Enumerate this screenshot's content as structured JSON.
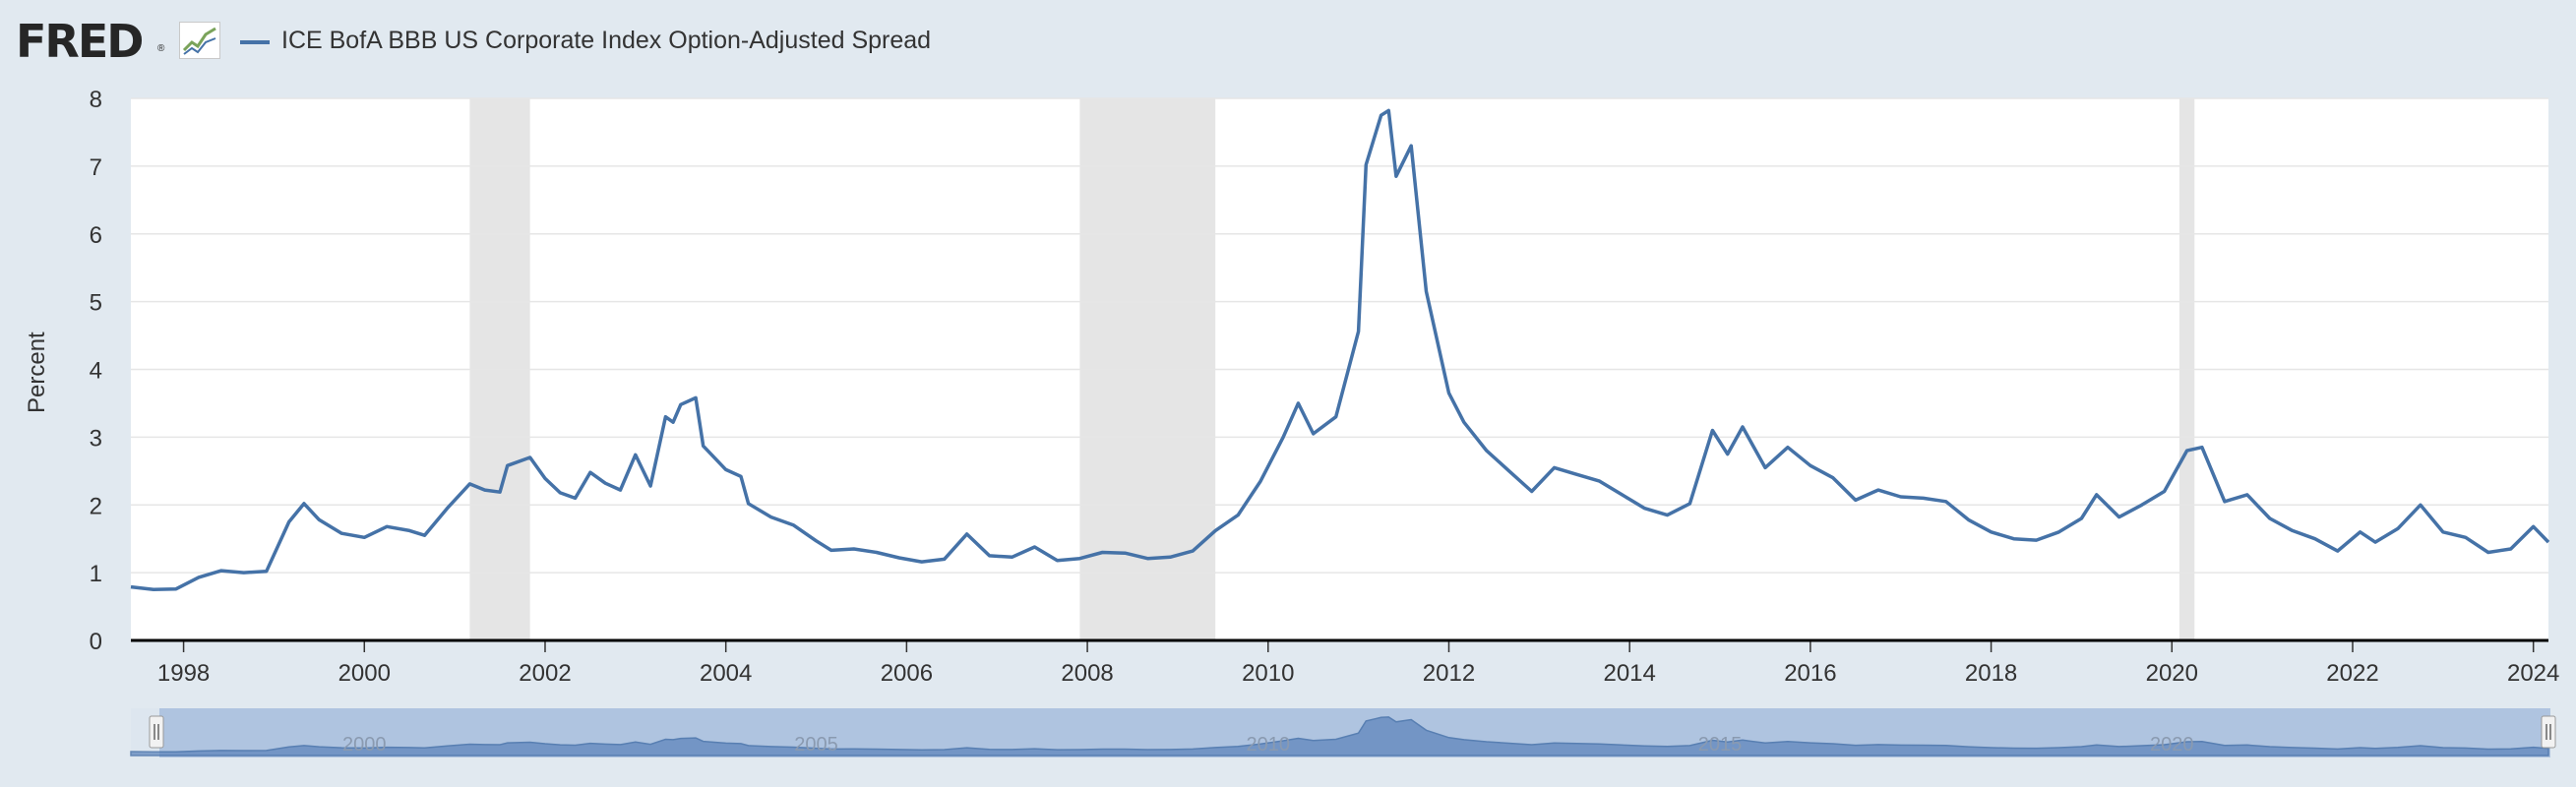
{
  "header": {
    "logo_text": "FRED",
    "logo_reg": "®",
    "logo_icon": "chart-line-icon",
    "legend_label": "ICE BofA BBB US Corporate Index Option-Adjusted Spread"
  },
  "navigator": {
    "year_labels": [
      "2000",
      "2005",
      "2010",
      "2015",
      "2020"
    ],
    "left_handle_icon": "drag-handle-icon",
    "right_handle_icon": "drag-handle-icon"
  },
  "colors": {
    "line": "#4572a7",
    "recession": "#e5e5e5",
    "background": "#e1e9f0",
    "plot": "#ffffff"
  },
  "chart_data": {
    "type": "line",
    "title": "",
    "xlabel": "",
    "ylabel": "Percent",
    "ylim": [
      0,
      8
    ],
    "xlim": [
      "1997-06",
      "2024-03"
    ],
    "yticks": [
      "0",
      "1",
      "2",
      "3",
      "4",
      "5",
      "6",
      "7",
      "8"
    ],
    "xticks": [
      "1998",
      "2000",
      "2002",
      "2004",
      "2006",
      "2008",
      "2010",
      "2012",
      "2014",
      "2016",
      "2018",
      "2020",
      "2022",
      "2024"
    ],
    "grid": true,
    "legend": "top-left",
    "recessions": [
      [
        "2001-03",
        "2001-11"
      ],
      [
        "2007-12",
        "2009-06"
      ],
      [
        "2020-02",
        "2020-04"
      ]
    ],
    "series": [
      {
        "name": "ICE BofA BBB US Corporate Index Option-Adjusted Spread",
        "points": [
          [
            "1997-06",
            0.79
          ],
          [
            "1997-09",
            0.75
          ],
          [
            "1997-12",
            0.76
          ],
          [
            "1998-03",
            0.93
          ],
          [
            "1998-06",
            1.03
          ],
          [
            "1998-09",
            1.0
          ],
          [
            "1998-12",
            1.02
          ],
          [
            "1999-03",
            1.75
          ],
          [
            "1999-05",
            2.02
          ],
          [
            "1999-07",
            1.78
          ],
          [
            "1999-10",
            1.58
          ],
          [
            "2000-01",
            1.52
          ],
          [
            "2000-04",
            1.68
          ],
          [
            "2000-07",
            1.62
          ],
          [
            "2000-09",
            1.55
          ],
          [
            "2000-12",
            1.95
          ],
          [
            "2001-03",
            2.31
          ],
          [
            "2001-05",
            2.22
          ],
          [
            "2001-07",
            2.19
          ],
          [
            "2001-08",
            2.58
          ],
          [
            "2001-11",
            2.7
          ],
          [
            "2002-01",
            2.39
          ],
          [
            "2002-03",
            2.18
          ],
          [
            "2002-05",
            2.1
          ],
          [
            "2002-07",
            2.48
          ],
          [
            "2002-09",
            2.32
          ],
          [
            "2002-11",
            2.22
          ],
          [
            "2003-01",
            2.74
          ],
          [
            "2003-03",
            2.28
          ],
          [
            "2003-05",
            3.3
          ],
          [
            "2003-06",
            3.22
          ],
          [
            "2003-07",
            3.48
          ],
          [
            "2003-09",
            3.58
          ],
          [
            "2003-10",
            2.87
          ],
          [
            "2004-01",
            2.52
          ],
          [
            "2004-03",
            2.42
          ],
          [
            "2004-04",
            2.02
          ],
          [
            "2004-07",
            1.82
          ],
          [
            "2004-10",
            1.7
          ],
          [
            "2005-01",
            1.47
          ],
          [
            "2005-03",
            1.33
          ],
          [
            "2005-06",
            1.35
          ],
          [
            "2005-09",
            1.3
          ],
          [
            "2005-12",
            1.22
          ],
          [
            "2006-03",
            1.16
          ],
          [
            "2006-06",
            1.2
          ],
          [
            "2006-09",
            1.57
          ],
          [
            "2006-12",
            1.25
          ],
          [
            "2007-03",
            1.23
          ],
          [
            "2007-06",
            1.38
          ],
          [
            "2007-09",
            1.18
          ],
          [
            "2007-12",
            1.21
          ],
          [
            "2008-03",
            1.3
          ],
          [
            "2008-06",
            1.29
          ],
          [
            "2008-09",
            1.21
          ],
          [
            "2008-12",
            1.23
          ],
          [
            "2009-03",
            1.32
          ],
          [
            "2009-06",
            1.62
          ],
          [
            "2009-09",
            1.85
          ],
          [
            "2009-12",
            2.35
          ],
          [
            "2010-03",
            3.0
          ],
          [
            "2010-05",
            3.5
          ],
          [
            "2010-07",
            3.05
          ],
          [
            "2010-10",
            3.3
          ],
          [
            "2011-01",
            4.56
          ],
          [
            "2011-02",
            7.02
          ],
          [
            "2011-04",
            7.75
          ],
          [
            "2011-05",
            7.82
          ],
          [
            "2011-06",
            6.85
          ],
          [
            "2011-08",
            7.3
          ],
          [
            "2011-10",
            5.15
          ],
          [
            "2012-01",
            3.65
          ],
          [
            "2012-03",
            3.22
          ],
          [
            "2012-06",
            2.8
          ],
          [
            "2012-09",
            2.5
          ],
          [
            "2012-12",
            2.2
          ],
          [
            "2013-03",
            2.55
          ],
          [
            "2013-06",
            2.45
          ],
          [
            "2013-09",
            2.35
          ],
          [
            "2013-12",
            2.15
          ],
          [
            "2014-03",
            1.95
          ],
          [
            "2014-06",
            1.85
          ],
          [
            "2014-09",
            2.02
          ],
          [
            "2014-12",
            3.1
          ],
          [
            "2015-02",
            2.75
          ],
          [
            "2015-04",
            3.15
          ],
          [
            "2015-07",
            2.55
          ],
          [
            "2015-10",
            2.85
          ],
          [
            "2016-01",
            2.58
          ],
          [
            "2016-04",
            2.4
          ],
          [
            "2016-07",
            2.07
          ],
          [
            "2016-10",
            2.22
          ],
          [
            "2017-01",
            2.12
          ],
          [
            "2017-04",
            2.1
          ],
          [
            "2017-07",
            2.05
          ],
          [
            "2017-10",
            1.78
          ],
          [
            "2018-01",
            1.6
          ],
          [
            "2018-04",
            1.5
          ],
          [
            "2018-07",
            1.48
          ],
          [
            "2018-10",
            1.6
          ],
          [
            "2019-01",
            1.8
          ],
          [
            "2019-03",
            2.15
          ],
          [
            "2019-06",
            1.82
          ],
          [
            "2019-09",
            2.0
          ],
          [
            "2019-12",
            2.2
          ],
          [
            "2020-03",
            2.8
          ],
          [
            "2020-05",
            2.85
          ],
          [
            "2020-08",
            2.05
          ],
          [
            "2020-11",
            2.15
          ],
          [
            "2021-02",
            1.8
          ],
          [
            "2021-05",
            1.62
          ],
          [
            "2021-08",
            1.5
          ],
          [
            "2021-11",
            1.32
          ],
          [
            "2022-02",
            1.6
          ],
          [
            "2022-04",
            1.45
          ],
          [
            "2022-07",
            1.65
          ],
          [
            "2022-10",
            2.0
          ],
          [
            "2023-01",
            1.6
          ],
          [
            "2023-04",
            1.52
          ],
          [
            "2023-07",
            1.3
          ],
          [
            "2023-10",
            1.35
          ],
          [
            "2024-01",
            1.68
          ],
          [
            "2024-03",
            1.45
          ]
        ]
      }
    ]
  }
}
